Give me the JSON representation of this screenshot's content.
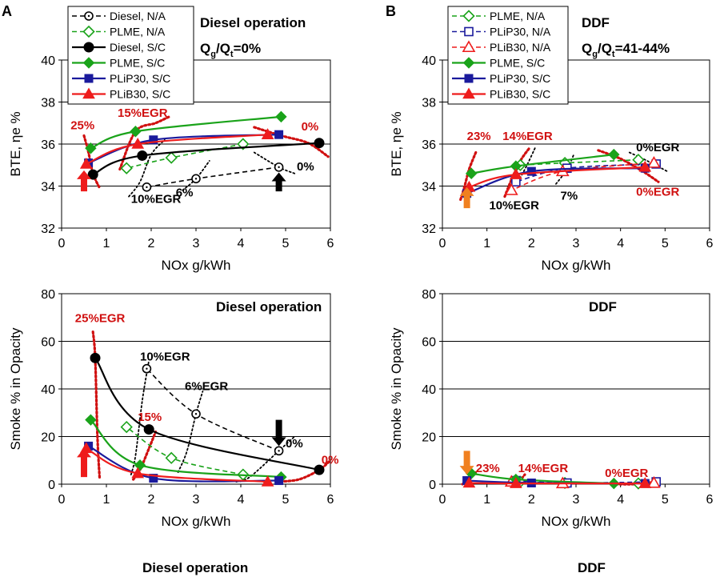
{
  "colors": {
    "diesel": "#000000",
    "plme": "#1aa31a",
    "plip30": "#1a1a9c",
    "plib30": "#ee1c1c",
    "egr_line": "#d01010",
    "arrow_red": "#ee1c1c",
    "arrow_black": "#000000",
    "arrow_orange": "#f08020",
    "ann_red": "#d01010",
    "ann_black": "#000000"
  },
  "labels": {
    "panel_a": "A",
    "panel_b": "B",
    "footer_a": "Diesel operation",
    "footer_b": "DDF",
    "title_a_top": "Diesel operation",
    "title_a_bottom": "Diesel operation",
    "title_b_top": "DDF",
    "title_b_bottom": "DDF",
    "ratio_a": "Qg/Qt=0%",
    "ratio_b": "Qg/Qt=41-44%"
  },
  "chart_data": [
    {
      "id": "A_top",
      "type": "line",
      "title": "Diesel operation",
      "subtitle": "Qg/Qt=0%",
      "xlabel": "NOx  g/kWh",
      "ylabel": "BTE, ηe  %",
      "xlim": [
        0,
        6
      ],
      "ylim": [
        32,
        40
      ],
      "xticks": [
        0,
        1,
        2,
        3,
        4,
        5,
        6
      ],
      "yticks": [
        32,
        34,
        36,
        38,
        40
      ],
      "grid": "horizontal",
      "legend": "top-left",
      "series": [
        {
          "name": "Diesel, N/A",
          "color": "diesel",
          "dash": true,
          "marker": "circle-open",
          "x": [
            4.85,
            3.0,
            1.9
          ],
          "y": [
            34.9,
            34.35,
            33.95
          ]
        },
        {
          "name": "PLME, N/A",
          "color": "plme",
          "dash": true,
          "marker": "diamond-open",
          "x": [
            4.05,
            2.45,
            1.45
          ],
          "y": [
            36.0,
            35.35,
            34.85
          ]
        },
        {
          "name": "Diesel, S/C",
          "color": "diesel",
          "dash": false,
          "marker": "circle-filled",
          "x": [
            5.75,
            1.8,
            0.7
          ],
          "y": [
            36.05,
            35.45,
            34.55
          ]
        },
        {
          "name": "PLME, S/C",
          "color": "plme",
          "dash": false,
          "marker": "diamond-filled",
          "x": [
            4.9,
            1.65,
            0.65
          ],
          "y": [
            37.3,
            36.6,
            35.8
          ]
        },
        {
          "name": "PLiP30, S/C",
          "color": "plip30",
          "dash": false,
          "marker": "square-filled",
          "x": [
            4.85,
            2.05,
            0.6
          ],
          "y": [
            36.45,
            36.2,
            35.1
          ]
        },
        {
          "name": "PLiB30, S/C",
          "color": "plib30",
          "dash": false,
          "marker": "triangle-filled",
          "x": [
            4.6,
            1.7,
            0.55
          ],
          "y": [
            36.45,
            36.0,
            35.05
          ]
        }
      ],
      "egr_lines": [
        {
          "color": "egr_line",
          "x": [
            0.5,
            0.6,
            0.7,
            0.85
          ],
          "y": [
            36.4,
            35.6,
            34.6,
            33.9
          ]
        },
        {
          "color": "egr_line",
          "x": [
            1.3,
            1.65,
            2.1,
            2.4
          ],
          "y": [
            34.8,
            36.6,
            37.0,
            37.3
          ]
        },
        {
          "color": "egr_line",
          "x": [
            4.3,
            4.9,
            5.5,
            5.95
          ],
          "y": [
            36.8,
            36.4,
            36.05,
            35.4
          ]
        },
        {
          "color": "ann_black",
          "x": [
            1.5,
            1.75,
            2.0,
            2.3
          ],
          "y": [
            33.5,
            34.2,
            35.5,
            36.2
          ]
        },
        {
          "color": "ann_black",
          "x": [
            2.7,
            3.0,
            3.3
          ],
          "y": [
            33.8,
            34.35,
            35.2
          ]
        },
        {
          "color": "ann_black",
          "x": [
            4.3,
            4.85,
            5.2
          ],
          "y": [
            35.6,
            34.9,
            34.6
          ]
        }
      ],
      "annotations": [
        {
          "text": "25%",
          "x": 0.2,
          "y": 36.7,
          "color": "ann_red"
        },
        {
          "text": "15%EGR",
          "x": 1.25,
          "y": 37.3,
          "color": "ann_red"
        },
        {
          "text": "0%",
          "x": 5.35,
          "y": 36.65,
          "color": "ann_red"
        },
        {
          "text": "10%EGR",
          "x": 1.55,
          "y": 33.2,
          "color": "ann_black"
        },
        {
          "text": "6%",
          "x": 2.55,
          "y": 33.5,
          "color": "ann_black"
        },
        {
          "text": "0%",
          "x": 5.25,
          "y": 34.75,
          "color": "ann_black"
        }
      ],
      "arrows": [
        {
          "x": 0.5,
          "y_tip": 34.75,
          "y_tail": 33.75,
          "color": "arrow_red"
        },
        {
          "x": 4.85,
          "y_tip": 34.65,
          "y_tail": 33.75,
          "color": "arrow_black"
        }
      ]
    },
    {
      "id": "B_top",
      "type": "line",
      "title": "DDF",
      "subtitle": "Qg/Qt=41-44%",
      "xlabel": "NOx  g/kWh",
      "ylabel": "BTE, ηe  %",
      "xlim": [
        0,
        6
      ],
      "ylim": [
        32,
        40
      ],
      "xticks": [
        0,
        1,
        2,
        3,
        4,
        5,
        6
      ],
      "yticks": [
        32,
        34,
        36,
        38,
        40
      ],
      "grid": "horizontal",
      "legend": "top-left",
      "series": [
        {
          "name": "PLME, N/A",
          "color": "plme",
          "dash": true,
          "marker": "diamond-open",
          "x": [
            4.4,
            2.75,
            1.75
          ],
          "y": [
            35.25,
            35.1,
            35.0
          ]
        },
        {
          "name": "PLiP30, N/A",
          "color": "plip30",
          "dash": true,
          "marker": "square-open",
          "x": [
            4.8,
            2.8,
            1.65
          ],
          "y": [
            35.05,
            34.85,
            34.2
          ]
        },
        {
          "name": "PLiB30, N/A",
          "color": "plib30",
          "dash": true,
          "marker": "triangle-open",
          "x": [
            4.75,
            2.7,
            1.55
          ],
          "y": [
            35.1,
            34.7,
            33.8
          ]
        },
        {
          "name": "PLME, S/C",
          "color": "plme",
          "dash": false,
          "marker": "diamond-filled",
          "x": [
            3.85,
            1.65,
            0.65
          ],
          "y": [
            35.5,
            34.95,
            34.6
          ]
        },
        {
          "name": "PLiP30, S/C",
          "color": "plip30",
          "dash": false,
          "marker": "square-filled",
          "x": [
            4.55,
            2.0,
            0.55
          ],
          "y": [
            34.85,
            34.7,
            33.65
          ]
        },
        {
          "name": "PLiB30, S/C",
          "color": "plib30",
          "dash": false,
          "marker": "triangle-filled",
          "x": [
            4.55,
            1.65,
            0.6
          ],
          "y": [
            34.9,
            34.55,
            33.95
          ]
        }
      ],
      "egr_lines": [
        {
          "color": "egr_line",
          "x": [
            0.75,
            0.6,
            0.5,
            0.4
          ],
          "y": [
            35.6,
            34.8,
            34.0,
            33.3
          ]
        },
        {
          "color": "egr_line",
          "x": [
            1.4,
            1.55,
            1.75,
            1.95
          ],
          "y": [
            33.5,
            34.3,
            35.2,
            35.8
          ]
        },
        {
          "color": "egr_line",
          "x": [
            3.5,
            4.0,
            4.5,
            4.85
          ],
          "y": [
            35.7,
            35.3,
            34.7,
            34.2
          ]
        },
        {
          "color": "ann_black",
          "x": [
            1.7,
            1.9,
            2.1
          ],
          "y": [
            34.2,
            35.0,
            35.9
          ]
        },
        {
          "color": "ann_black",
          "x": [
            2.55,
            2.8,
            2.95
          ],
          "y": [
            34.1,
            34.8,
            35.5
          ]
        },
        {
          "color": "ann_black",
          "x": [
            4.2,
            4.6,
            5.05
          ],
          "y": [
            35.6,
            35.2,
            34.7
          ]
        }
      ],
      "annotations": [
        {
          "text": "23%",
          "x": 0.55,
          "y": 36.2,
          "color": "ann_red"
        },
        {
          "text": "14%EGR",
          "x": 1.35,
          "y": 36.2,
          "color": "ann_red"
        },
        {
          "text": "0%EGR",
          "x": 4.35,
          "y": 35.65,
          "color": "ann_black"
        },
        {
          "text": "10%EGR",
          "x": 1.05,
          "y": 32.9,
          "color": "ann_black"
        },
        {
          "text": "7%",
          "x": 2.65,
          "y": 33.35,
          "color": "ann_black"
        },
        {
          "text": "0%EGR",
          "x": 4.35,
          "y": 33.55,
          "color": "ann_red"
        }
      ],
      "arrows": [
        {
          "x": 0.55,
          "y_tip": 33.95,
          "y_tail": 32.95,
          "color": "arrow_orange"
        }
      ]
    },
    {
      "id": "A_bottom",
      "type": "line",
      "title": "Diesel operation",
      "xlabel": "NOx  g/kWh",
      "ylabel": "Smoke    % in Opacity",
      "xlim": [
        0,
        6
      ],
      "ylim": [
        0,
        80
      ],
      "xticks": [
        0,
        1,
        2,
        3,
        4,
        5,
        6
      ],
      "yticks": [
        0,
        20,
        40,
        60,
        80
      ],
      "grid": "horizontal",
      "series": [
        {
          "name": "Diesel, N/A",
          "color": "diesel",
          "dash": true,
          "marker": "circle-open",
          "x": [
            4.85,
            3.0,
            1.9
          ],
          "y": [
            14,
            29.5,
            48.5
          ]
        },
        {
          "name": "PLME, N/A",
          "color": "plme",
          "dash": true,
          "marker": "diamond-open",
          "x": [
            4.05,
            2.45,
            1.45
          ],
          "y": [
            4,
            11,
            24
          ]
        },
        {
          "name": "Diesel, S/C",
          "color": "diesel",
          "dash": false,
          "marker": "circle-filled",
          "x": [
            5.75,
            1.95,
            0.75
          ],
          "y": [
            6,
            23,
            53
          ]
        },
        {
          "name": "PLME, S/C",
          "color": "plme",
          "dash": false,
          "marker": "diamond-filled",
          "x": [
            4.9,
            1.75,
            0.65
          ],
          "y": [
            3,
            8,
            27
          ]
        },
        {
          "name": "PLiP30, S/C",
          "color": "plip30",
          "dash": false,
          "marker": "square-filled",
          "x": [
            4.85,
            2.05,
            0.6
          ],
          "y": [
            1.5,
            2.5,
            16
          ]
        },
        {
          "name": "PLiB30, S/C",
          "color": "plib30",
          "dash": false,
          "marker": "triangle-filled",
          "x": [
            4.6,
            1.7,
            0.55
          ],
          "y": [
            1,
            4.5,
            15
          ]
        }
      ],
      "egr_lines": [
        {
          "color": "egr_line",
          "x": [
            0.7,
            0.75,
            0.8,
            0.85
          ],
          "y": [
            64,
            53,
            20,
            2
          ]
        },
        {
          "color": "egr_line",
          "x": [
            1.6,
            1.75,
            1.95,
            2.1
          ],
          "y": [
            2,
            6,
            15,
            22
          ]
        },
        {
          "color": "egr_line",
          "x": [
            4.8,
            5.3,
            5.75,
            6.0
          ],
          "y": [
            1,
            2,
            6,
            10
          ]
        },
        {
          "color": "ann_black",
          "x": [
            1.55,
            1.65,
            1.8,
            1.95
          ],
          "y": [
            4,
            12,
            35,
            52
          ]
        },
        {
          "color": "ann_black",
          "x": [
            2.6,
            2.8,
            3.0,
            3.15
          ],
          "y": [
            5,
            14,
            29.5,
            39
          ]
        },
        {
          "color": "ann_black",
          "x": [
            3.9,
            4.2,
            4.85,
            5.2
          ],
          "y": [
            1,
            3,
            14,
            20
          ]
        }
      ],
      "annotations": [
        {
          "text": "25%EGR",
          "x": 0.3,
          "y": 68,
          "color": "ann_red"
        },
        {
          "text": "10%EGR",
          "x": 1.75,
          "y": 52,
          "color": "ann_black"
        },
        {
          "text": "6%EGR",
          "x": 2.75,
          "y": 39.5,
          "color": "ann_black"
        },
        {
          "text": "15%",
          "x": 1.7,
          "y": 26.5,
          "color": "ann_red"
        },
        {
          "text": "0%",
          "x": 5.0,
          "y": 15.5,
          "color": "ann_black"
        },
        {
          "text": "0%",
          "x": 5.8,
          "y": 8.5,
          "color": "ann_red"
        }
      ],
      "arrows": [
        {
          "x": 0.5,
          "y_tip": 15,
          "y_tail": 3,
          "color": "arrow_red"
        },
        {
          "x": 4.85,
          "y_tip": 16,
          "y_tail": 27,
          "color": "arrow_black"
        }
      ]
    },
    {
      "id": "B_bottom",
      "type": "line",
      "title": "DDF",
      "xlabel": "NOx  g/kWh",
      "ylabel": "Smoke    % in Opacity",
      "xlim": [
        0,
        6
      ],
      "ylim": [
        0,
        80
      ],
      "xticks": [
        0,
        1,
        2,
        3,
        4,
        5,
        6
      ],
      "yticks": [
        0,
        20,
        40,
        60,
        80
      ],
      "grid": "horizontal",
      "series": [
        {
          "name": "PLME, N/A",
          "color": "plme",
          "dash": true,
          "marker": "diamond-open",
          "x": [
            4.4,
            2.75,
            1.75
          ],
          "y": [
            0.3,
            0.5,
            1.0
          ]
        },
        {
          "name": "PLiP30, N/A",
          "color": "plip30",
          "dash": true,
          "marker": "square-open",
          "x": [
            4.8,
            2.8,
            1.65
          ],
          "y": [
            1.0,
            0.5,
            1.5
          ]
        },
        {
          "name": "PLiB30, N/A",
          "color": "plib30",
          "dash": true,
          "marker": "triangle-open",
          "x": [
            4.75,
            2.7,
            1.55
          ],
          "y": [
            0.5,
            0.3,
            1.0
          ]
        },
        {
          "name": "PLME, S/C",
          "color": "plme",
          "dash": false,
          "marker": "diamond-filled",
          "x": [
            3.85,
            1.65,
            0.65
          ],
          "y": [
            0.3,
            2.0,
            4.5
          ]
        },
        {
          "name": "PLiP30, S/C",
          "color": "plip30",
          "dash": false,
          "marker": "square-filled",
          "x": [
            4.55,
            2.0,
            0.55
          ],
          "y": [
            0.3,
            0.5,
            1.5
          ]
        },
        {
          "name": "PLiB30, S/C",
          "color": "plib30",
          "dash": false,
          "marker": "triangle-filled",
          "x": [
            4.55,
            1.65,
            0.6
          ],
          "y": [
            0.3,
            0.3,
            0.5
          ]
        }
      ],
      "egr_lines": [
        {
          "color": "egr_line",
          "x": [
            0.45,
            0.55,
            0.65,
            0.75
          ],
          "y": [
            0,
            1,
            3,
            5
          ]
        },
        {
          "color": "egr_line",
          "x": [
            1.45,
            1.6,
            1.75,
            1.85
          ],
          "y": [
            0,
            1,
            2,
            4
          ]
        },
        {
          "color": "egr_line",
          "x": [
            3.9,
            4.3,
            4.6,
            4.8
          ],
          "y": [
            0,
            0,
            0.5,
            1.5
          ]
        }
      ],
      "annotations": [
        {
          "text": "23%",
          "x": 0.75,
          "y": 5,
          "color": "ann_red"
        },
        {
          "text": "14%EGR",
          "x": 1.7,
          "y": 5,
          "color": "ann_red"
        },
        {
          "text": "0%EGR",
          "x": 3.65,
          "y": 3,
          "color": "ann_red"
        }
      ],
      "arrows": [
        {
          "x": 0.55,
          "y_tip": 4,
          "y_tail": 14,
          "color": "arrow_orange"
        }
      ]
    }
  ]
}
